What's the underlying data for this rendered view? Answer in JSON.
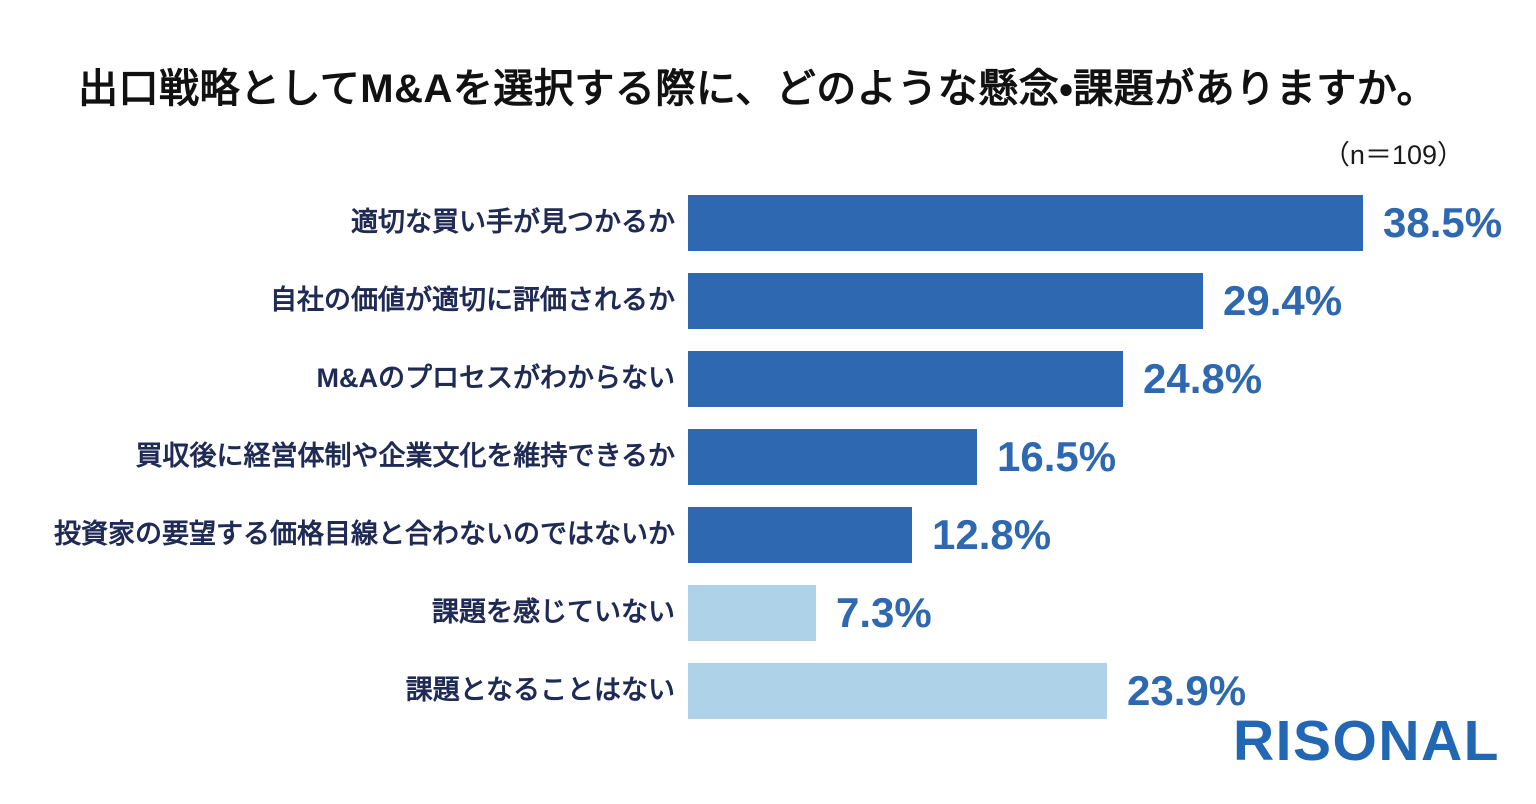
{
  "title": "出口戦略としてM&Aを選択する際に、どのような懸念・課題がありますか。",
  "sample_size_label": "（n＝109）",
  "logo_text": "RISONAL",
  "colors": {
    "background": "#ffffff",
    "bar_primary": "#2d68b0",
    "bar_light": "#aed3e8",
    "category_text": "#1f2a55",
    "value_text": "#2d68b0",
    "title_text": "#111111",
    "sample_text": "#1a1a1a",
    "logo_text": "#2267b4"
  },
  "chart_data": {
    "type": "bar",
    "orientation": "horizontal",
    "title": "出口戦略としてM&Aを選択する際に、どのような懸念・課題がありますか。",
    "sample_size": 109,
    "unit": "%",
    "xlim": [
      0,
      40
    ],
    "grid": false,
    "legend": "none",
    "categories": [
      "適切な買い手が見つかるか",
      "自社の価値が適切に評価されるか",
      "M&Aのプロセスがわからない",
      "買収後に経営体制や企業文化を維持できるか",
      "投資家の要望する価格目線と合わないのではないか",
      "課題を感じていない",
      "課題となることはない"
    ],
    "values": [
      38.5,
      29.4,
      24.8,
      16.5,
      12.8,
      7.3,
      23.9
    ],
    "value_labels": [
      "38.5%",
      "29.4%",
      "24.8%",
      "16.5%",
      "12.8%",
      "7.3%",
      "23.9%"
    ],
    "bar_styles": [
      "primary",
      "primary",
      "primary",
      "primary",
      "primary",
      "light",
      "light"
    ]
  }
}
